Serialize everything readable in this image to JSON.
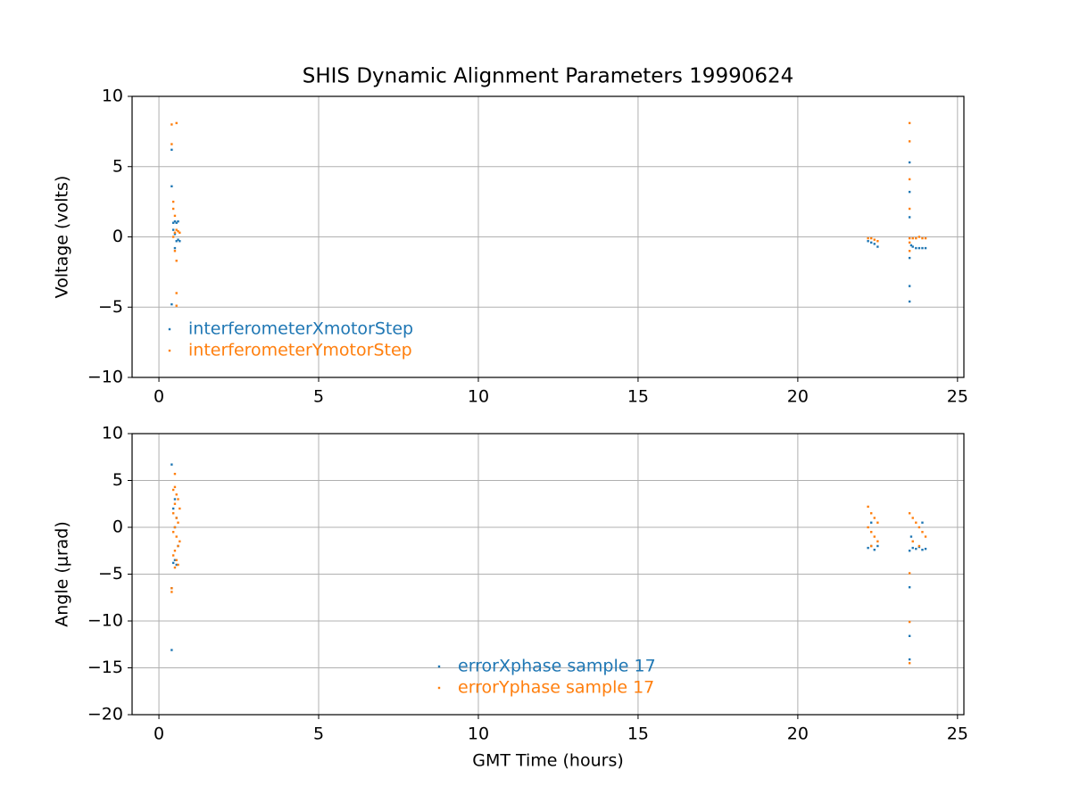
{
  "chart_data": [
    {
      "type": "scatter",
      "title": "SHIS Dynamic Alignment Parameters 19990624",
      "y_label": "Voltage (volts)",
      "xlim": [
        -0.84,
        25.2
      ],
      "xticks": [
        0,
        5,
        10,
        15,
        20,
        25
      ],
      "ylim": [
        -10,
        10
      ],
      "yticks": [
        {
          "value": -10,
          "label": "−10"
        },
        {
          "value": -5,
          "label": "−5"
        },
        0,
        5,
        10
      ],
      "grid": true,
      "legend": "lower left",
      "series": [
        {
          "name": "interferometerXmotorStep",
          "color": "#1f77b4",
          "x": [
            0.4,
            0.4,
            0.4,
            0.45,
            0.5,
            0.55,
            0.6,
            0.45,
            0.5,
            0.55,
            0.6,
            0.65,
            0.5,
            22.2,
            22.3,
            22.4,
            22.5,
            23.5,
            23.5,
            23.5,
            23.5,
            23.5,
            23.5,
            23.6,
            23.7,
            23.8,
            23.9,
            24.0,
            23.55
          ],
          "values": [
            6.2,
            3.6,
            -4.8,
            1.0,
            1.1,
            1.0,
            1.1,
            0.5,
            0.2,
            -0.3,
            -0.2,
            -0.3,
            -0.8,
            -0.3,
            -0.4,
            -0.5,
            -0.7,
            5.3,
            3.2,
            1.4,
            -1.5,
            -3.5,
            -4.6,
            -0.7,
            -0.8,
            -0.8,
            -0.8,
            -0.8,
            -0.6
          ]
        },
        {
          "name": "interferometerYmotorStep",
          "color": "#ff7f0e",
          "x": [
            0.4,
            0.55,
            0.4,
            0.45,
            0.45,
            0.5,
            0.5,
            0.55,
            0.6,
            0.65,
            0.5,
            0.55,
            0.55,
            0.55,
            0.45,
            22.2,
            22.3,
            22.4,
            22.5,
            23.5,
            23.5,
            23.5,
            23.5,
            23.5,
            23.6,
            23.7,
            23.8,
            23.9,
            24.0,
            23.5,
            23.5
          ],
          "values": [
            8.0,
            8.1,
            6.6,
            2.5,
            2.0,
            1.5,
            0.3,
            0.5,
            0.4,
            0.3,
            -1.0,
            -1.7,
            -4.0,
            -4.9,
            0.0,
            -0.1,
            -0.1,
            -0.2,
            -0.3,
            8.1,
            6.8,
            4.1,
            2.0,
            -0.1,
            -0.1,
            -0.1,
            0,
            -0.1,
            -0.1,
            -0.4,
            -1.0
          ]
        }
      ]
    },
    {
      "type": "scatter",
      "x_label": "GMT Time (hours)",
      "y_label": "Angle (μrad)",
      "xlim": [
        -0.84,
        25.2
      ],
      "xticks": [
        0,
        5,
        10,
        15,
        20,
        25
      ],
      "ylim": [
        -20,
        10
      ],
      "yticks": [
        {
          "value": -20,
          "label": "−20"
        },
        {
          "value": -15,
          "label": "−15"
        },
        {
          "value": -10,
          "label": "−10"
        },
        {
          "value": -5,
          "label": "−5"
        },
        0,
        5,
        10
      ],
      "grid": true,
      "legend": "lower center",
      "series": [
        {
          "name": "errorXphase sample 17",
          "color": "#1f77b4",
          "x": [
            0.4,
            0.4,
            0.4,
            0.45,
            0.5,
            0.55,
            0.5,
            0.45,
            0.55,
            0.6,
            0.5,
            22.2,
            22.3,
            22.4,
            22.5,
            23.5,
            23.6,
            23.7,
            23.8,
            23.9,
            24.0,
            23.5,
            23.5,
            23.5,
            23.55,
            23.9,
            22.3
          ],
          "values": [
            6.7,
            -6.5,
            -13.1,
            -3.8,
            -3.5,
            -4.0,
            3,
            2,
            1,
            -2,
            0,
            -2.2,
            -2.0,
            -2.4,
            -2,
            -2.5,
            -2.2,
            -2.3,
            -2.1,
            -2.4,
            -2.3,
            -6.4,
            -11.6,
            -14.1,
            -1,
            0.5,
            0.5
          ]
        },
        {
          "name": "errorYphase sample 17",
          "color": "#ff7f0e",
          "x": [
            0.5,
            0.45,
            0.55,
            0.6,
            0.5,
            0.65,
            0.45,
            0.55,
            0.6,
            0.5,
            0.45,
            0.55,
            0.65,
            0.6,
            0.5,
            0.45,
            0.55,
            0.6,
            0.5,
            0.4,
            0.4,
            0.5,
            22.2,
            22.3,
            22.4,
            22.5,
            22.2,
            22.3,
            22.4,
            22.5,
            22.3,
            23.5,
            23.6,
            23.7,
            23.8,
            23.9,
            24.0,
            23.6,
            23.8,
            23.5,
            23.5,
            23.5
          ],
          "values": [
            4.3,
            4.0,
            3.5,
            3.0,
            2.5,
            2.0,
            1.5,
            1.0,
            0.5,
            0,
            -0.5,
            -1,
            -1.5,
            -2,
            -2.5,
            -3,
            -3.5,
            -4.0,
            -4.3,
            -6.9,
            -6.5,
            5.7,
            2.2,
            1.5,
            1,
            0.5,
            0,
            -0.5,
            -1,
            -1.5,
            -2,
            1.5,
            1,
            0.5,
            0,
            -0.5,
            -1,
            -1.5,
            -2,
            -4.9,
            -10.1,
            -14.5
          ]
        }
      ]
    }
  ]
}
